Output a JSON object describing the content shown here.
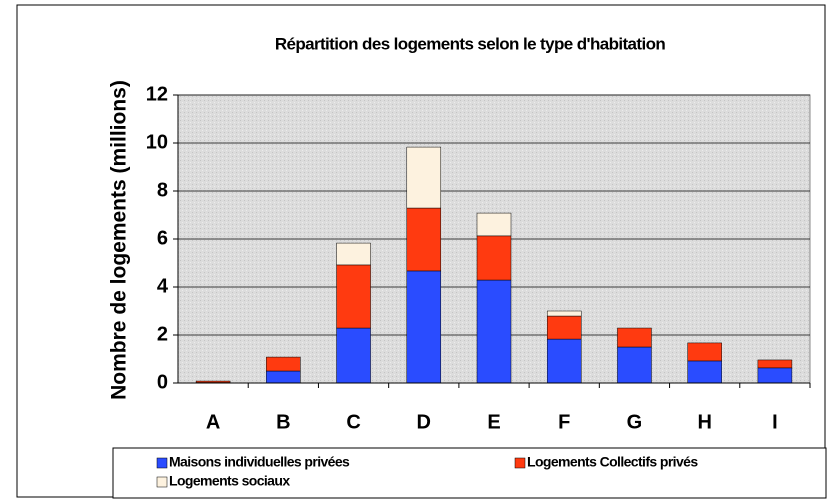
{
  "chart_data": {
    "type": "stacked_bar",
    "title": "Répartition des logements selon le type d'habitation",
    "y_label": "Nombre de logements (millions)",
    "categories": [
      "A",
      "B",
      "C",
      "D",
      "E",
      "F",
      "G",
      "H",
      "I"
    ],
    "series": [
      {
        "name": "Maisons individuelles privées",
        "color": "#2a4cff",
        "values": [
          0.02,
          0.5,
          2.29,
          4.67,
          4.29,
          1.83,
          1.5,
          0.92,
          0.63
        ]
      },
      {
        "name": "Logements Collectifs privés",
        "color": "#ff3a10",
        "values": [
          0.06,
          0.58,
          2.63,
          2.62,
          1.84,
          0.96,
          0.79,
          0.75,
          0.33
        ]
      },
      {
        "name": "Logements sociaux",
        "color": "#fdf2df",
        "values": [
          0,
          0,
          0.91,
          2.54,
          0.95,
          0.21,
          0,
          0,
          0
        ]
      }
    ],
    "ylim": [
      0,
      12
    ],
    "yticks": [
      0,
      2,
      4,
      6,
      8,
      10,
      12
    ],
    "grid": true
  }
}
